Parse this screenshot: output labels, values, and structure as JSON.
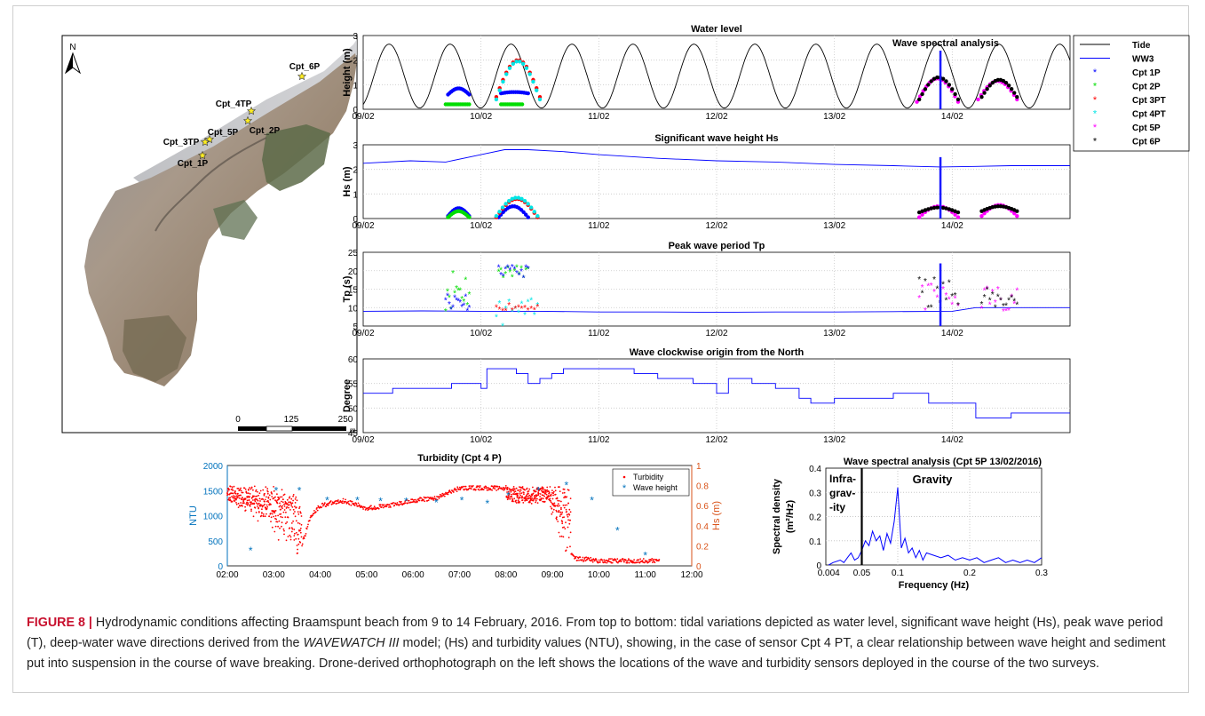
{
  "caption": {
    "label": "FIGURE 8 |",
    "text_before_model": " Hydrodynamic conditions affecting Braamspunt beach from 9 to 14 February, 2016. From top to bottom: tidal variations depicted as water level, significant wave height (Hs), peak wave period (T), deep-water wave directions derived from the ",
    "model": "WAVEWATCH III",
    "text_after_model": " model; (Hs) and turbidity values (NTU), showing, in the case of sensor Cpt 4 PT, a clear relationship between wave height and sediment put into suspension in the course of wave breaking. Drone-derived orthophotograph on the left shows the locations of the wave and turbidity sensors deployed in the course of the two surveys."
  },
  "map": {
    "north_label": "N",
    "sensors": [
      "Cpt_6P",
      "Cpt_4TP",
      "Cpt_2P",
      "Cpt_5P",
      "Cpt_3TP",
      "Cpt_1P"
    ],
    "scale_labels": [
      "0",
      "125",
      "250"
    ],
    "scale_unit": "m"
  },
  "colors": {
    "tide": "#000000",
    "ww3": "#0000ff",
    "marker_line": "#1a1aff",
    "Cpt 1P": "#0000ff",
    "Cpt 2P": "#00dd00",
    "Cpt 3PT": "#ff0000",
    "Cpt 4PT": "#00e5e5",
    "Cpt 5P": "#ff00ff",
    "Cpt 6P": "#000000",
    "turbidity": "#ff0000",
    "ntu_axis": "#0072bd",
    "hs_axis": "#d95319"
  },
  "chart_data": [
    {
      "type": "line",
      "title": "Water level",
      "annotation": "Wave spectral analysis",
      "ylabel": "Height (m)",
      "ylim": [
        0,
        3
      ],
      "y_ticks": [
        "0",
        "1",
        "2",
        "3"
      ],
      "x_ticks": [
        "09/02",
        "10/02",
        "11/02",
        "12/02",
        "13/02",
        "14/02"
      ],
      "legend": [
        "Tide",
        "WW3",
        "Cpt 1P",
        "Cpt 2P",
        "Cpt 3PT",
        "Cpt 4PT",
        "Cpt 5P",
        "Cpt 6P"
      ],
      "marker_x_day": 13.9,
      "tide": {
        "mean": 1.35,
        "amplitude": 1.3,
        "period_days": 0.5175,
        "first_peak_day": 9.22
      },
      "sensor_bursts": [
        {
          "name": "Cpt 1P",
          "start": 9.72,
          "end": 9.9,
          "min": 0.6,
          "max": 0.85
        },
        {
          "name": "Cpt 2P",
          "start": 9.7,
          "end": 9.9,
          "min": 0.2,
          "max": 0.2
        },
        {
          "name": "Cpt 1P",
          "start": 10.17,
          "end": 10.4,
          "min": 0.65,
          "max": 0.7
        },
        {
          "name": "Cpt 2P",
          "start": 10.17,
          "end": 10.35,
          "min": 0.2,
          "max": 0.2
        },
        {
          "name": "Cpt 3PT",
          "start": 10.13,
          "end": 10.5,
          "min": 0.5,
          "max": 2.0
        },
        {
          "name": "Cpt 4PT",
          "start": 10.13,
          "end": 10.5,
          "min": 0.4,
          "max": 1.95
        },
        {
          "name": "Cpt 5P",
          "start": 13.7,
          "end": 14.05,
          "min": 0.3,
          "max": 1.25
        },
        {
          "name": "Cpt 6P",
          "start": 13.72,
          "end": 14.05,
          "min": 0.4,
          "max": 1.3
        },
        {
          "name": "Cpt 5P",
          "start": 14.22,
          "end": 14.55,
          "min": 0.4,
          "max": 1.15
        },
        {
          "name": "Cpt 6P",
          "start": 14.25,
          "end": 14.55,
          "min": 0.5,
          "max": 1.2
        }
      ]
    },
    {
      "type": "line",
      "title": "Significant wave height Hs",
      "ylabel": "Hs (m)",
      "ylim": [
        0,
        3
      ],
      "y_ticks": [
        "0",
        "1",
        "2",
        "3"
      ],
      "x_ticks": [
        "09/02",
        "10/02",
        "11/02",
        "12/02",
        "13/02",
        "14/02"
      ],
      "marker_x_day": 13.9,
      "ww3": {
        "x": [
          9.0,
          9.4,
          9.7,
          10.0,
          10.2,
          10.4,
          10.7,
          11.0,
          11.5,
          12.0,
          12.5,
          13.0,
          13.5,
          13.9,
          14.2,
          14.5,
          15.0
        ],
        "y": [
          2.25,
          2.35,
          2.3,
          2.6,
          2.8,
          2.8,
          2.72,
          2.6,
          2.45,
          2.35,
          2.3,
          2.2,
          2.15,
          2.1,
          2.12,
          2.15,
          2.15
        ]
      },
      "sensor_bursts": [
        {
          "name": "Cpt 1P",
          "start": 9.72,
          "end": 9.9,
          "min": 0.1,
          "max": 0.42
        },
        {
          "name": "Cpt 2P",
          "start": 9.72,
          "end": 9.9,
          "min": 0.05,
          "max": 0.3
        },
        {
          "name": "Cpt 1P",
          "start": 10.15,
          "end": 10.4,
          "min": 0.05,
          "max": 0.5
        },
        {
          "name": "Cpt 3PT",
          "start": 10.13,
          "end": 10.48,
          "min": 0.05,
          "max": 0.8
        },
        {
          "name": "Cpt 4PT",
          "start": 10.13,
          "end": 10.48,
          "min": 0.1,
          "max": 0.85
        },
        {
          "name": "Cpt 5P",
          "start": 13.72,
          "end": 14.05,
          "min": 0.05,
          "max": 0.5
        },
        {
          "name": "Cpt 6P",
          "start": 13.72,
          "end": 14.05,
          "min": 0.25,
          "max": 0.45
        },
        {
          "name": "Cpt 5P",
          "start": 14.25,
          "end": 14.55,
          "min": 0.1,
          "max": 0.55
        },
        {
          "name": "Cpt 6P",
          "start": 14.25,
          "end": 14.55,
          "min": 0.3,
          "max": 0.5
        }
      ]
    },
    {
      "type": "scatter",
      "title": "Peak wave period Tp",
      "ylabel": "Tp (s)",
      "ylim": [
        5,
        25
      ],
      "y_ticks": [
        "5",
        "10",
        "15",
        "20",
        "25"
      ],
      "x_ticks": [
        "09/02",
        "10/02",
        "11/02",
        "12/02",
        "13/02",
        "14/02"
      ],
      "marker_x_day": 13.9,
      "ww3": {
        "x": [
          9.0,
          9.5,
          10.0,
          10.5,
          11.0,
          11.5,
          12.0,
          12.5,
          13.0,
          13.5,
          14.0,
          14.2,
          15.0
        ],
        "y": [
          9.0,
          9.1,
          9.0,
          9.0,
          8.8,
          8.8,
          8.7,
          8.8,
          8.8,
          8.9,
          9.0,
          10.0,
          10.0
        ]
      },
      "sensor_bursts": [
        {
          "name": "Cpt 2P",
          "start": 9.7,
          "end": 9.9,
          "min": 9.0,
          "max": 21.0
        },
        {
          "name": "Cpt 1P",
          "start": 9.7,
          "end": 9.9,
          "min": 9.0,
          "max": 14.0
        },
        {
          "name": "Cpt 2P",
          "start": 10.15,
          "end": 10.4,
          "min": 18.0,
          "max": 21.0
        },
        {
          "name": "Cpt 1P",
          "start": 10.15,
          "end": 10.4,
          "min": 18.0,
          "max": 21.0
        },
        {
          "name": "Cpt 4PT",
          "start": 10.13,
          "end": 10.48,
          "min": 5.0,
          "max": 12.0
        },
        {
          "name": "Cpt 3PT",
          "start": 10.13,
          "end": 10.48,
          "min": 9.0,
          "max": 11.0
        },
        {
          "name": "Cpt 5P",
          "start": 13.72,
          "end": 14.05,
          "min": 8.5,
          "max": 16.0
        },
        {
          "name": "Cpt 6P",
          "start": 13.72,
          "end": 14.05,
          "min": 8.5,
          "max": 18.0
        },
        {
          "name": "Cpt 5P",
          "start": 14.25,
          "end": 14.55,
          "min": 9.0,
          "max": 16.0
        },
        {
          "name": "Cpt 6P",
          "start": 14.25,
          "end": 14.55,
          "min": 9.0,
          "max": 15.0
        }
      ]
    },
    {
      "type": "line",
      "title": "Wave clockwise origin from the North",
      "ylabel": "Degree",
      "ylim": [
        45,
        60
      ],
      "y_ticks": [
        "45",
        "50",
        "55",
        "60"
      ],
      "x_ticks": [
        "09/02",
        "10/02",
        "11/02",
        "12/02",
        "13/02",
        "14/02"
      ],
      "ww3_step": {
        "x": [
          9.0,
          9.25,
          9.5,
          9.75,
          10.0,
          10.05,
          10.3,
          10.4,
          10.5,
          10.6,
          10.7,
          11.0,
          11.3,
          11.5,
          11.8,
          12.0,
          12.1,
          12.3,
          12.5,
          12.7,
          12.8,
          13.0,
          13.3,
          13.5,
          13.8,
          14.0,
          14.2,
          14.5,
          15.0
        ],
        "y": [
          53.0,
          54.0,
          54.0,
          55.0,
          54.0,
          58.0,
          57.0,
          55.0,
          56.0,
          57.0,
          58.0,
          58.0,
          57.0,
          56.0,
          55.0,
          53.0,
          56.0,
          55.0,
          54.0,
          52.0,
          51.0,
          52.0,
          52.0,
          53.0,
          51.0,
          51.0,
          48.0,
          49.0,
          49.0
        ]
      }
    },
    {
      "type": "scatter",
      "title": "Turbidity (Cpt 4 P)",
      "ylabel": "NTU",
      "ylabel_right": "Hs (m)",
      "ylim": [
        0,
        2000
      ],
      "ylim_right": [
        0,
        1
      ],
      "y_ticks": [
        "0",
        "500",
        "1000",
        "1500",
        "2000"
      ],
      "y_ticks_right": [
        "0",
        "0.2",
        "0.4",
        "0.6",
        "0.8",
        "1"
      ],
      "x_ticks": [
        "02:00",
        "03:00",
        "04:00",
        "05:00",
        "06:00",
        "07:00",
        "08:00",
        "09:00",
        "10:00",
        "11:00",
        "12:00"
      ],
      "legend": [
        "Turbidity",
        "Wave height"
      ],
      "turbidity_ceiling": 1600,
      "turbidity_envelope": {
        "x": [
          2.0,
          2.5,
          3.0,
          3.3,
          3.5,
          3.6,
          3.8,
          4.0,
          4.5,
          5.0,
          5.5,
          6.0,
          6.5,
          7.0,
          8.0,
          8.5,
          8.9,
          9.0,
          9.2,
          9.3,
          9.5,
          10.0,
          10.5,
          11.0
        ],
        "y": [
          1600,
          1200,
          800,
          600,
          100,
          400,
          1000,
          1200,
          1300,
          1150,
          1200,
          1300,
          1350,
          1550,
          1550,
          1500,
          1550,
          1200,
          600,
          300,
          150,
          100,
          100,
          100
        ]
      },
      "wave_height": {
        "x": [
          2.5,
          3.05,
          3.55,
          4.15,
          4.8,
          5.3,
          5.85,
          6.5,
          7.05,
          7.6,
          8.05,
          8.7,
          9.3,
          9.85,
          10.4,
          11.0
        ],
        "y": [
          0.15,
          0.75,
          0.75,
          0.65,
          0.65,
          0.64,
          0.64,
          0.63,
          0.65,
          0.62,
          0.7,
          0.75,
          0.8,
          0.65,
          0.35,
          0.1
        ]
      }
    },
    {
      "type": "line",
      "title": "Wave spectral analysis (Cpt 5P 13/02/2016)",
      "xlabel": "Frequency (Hz)",
      "ylabel": "Spectral density (m²/Hz)",
      "ylabel_lines": [
        "Spectral density",
        "(m²/Hz)"
      ],
      "ylim": [
        0,
        0.4
      ],
      "xlim": [
        0,
        0.3
      ],
      "y_ticks": [
        "0",
        "0.1",
        "0.2",
        "0.3",
        "0.4"
      ],
      "x_ticks": [
        "0.004",
        "0.05",
        "0.1",
        "0.2",
        "0.3"
      ],
      "x_tick_values": [
        0.004,
        0.05,
        0.1,
        0.2,
        0.3
      ],
      "divider_x": 0.05,
      "region_labels": [
        "Infra-",
        "grav-",
        "-ity",
        "Gravity"
      ],
      "spectrum": {
        "x": [
          0.004,
          0.01,
          0.02,
          0.025,
          0.03,
          0.035,
          0.04,
          0.045,
          0.05,
          0.055,
          0.06,
          0.065,
          0.07,
          0.075,
          0.08,
          0.085,
          0.09,
          0.095,
          0.1,
          0.105,
          0.11,
          0.115,
          0.12,
          0.125,
          0.13,
          0.135,
          0.14,
          0.15,
          0.16,
          0.17,
          0.18,
          0.19,
          0.2,
          0.21,
          0.22,
          0.23,
          0.24,
          0.25,
          0.26,
          0.27,
          0.28,
          0.29,
          0.3
        ],
        "y": [
          0.0,
          0.01,
          0.02,
          0.01,
          0.03,
          0.05,
          0.02,
          0.03,
          0.06,
          0.1,
          0.08,
          0.14,
          0.1,
          0.12,
          0.06,
          0.13,
          0.09,
          0.18,
          0.32,
          0.07,
          0.11,
          0.05,
          0.07,
          0.03,
          0.06,
          0.02,
          0.05,
          0.04,
          0.03,
          0.04,
          0.02,
          0.03,
          0.02,
          0.03,
          0.01,
          0.02,
          0.03,
          0.01,
          0.02,
          0.01,
          0.02,
          0.01,
          0.03
        ]
      }
    }
  ]
}
